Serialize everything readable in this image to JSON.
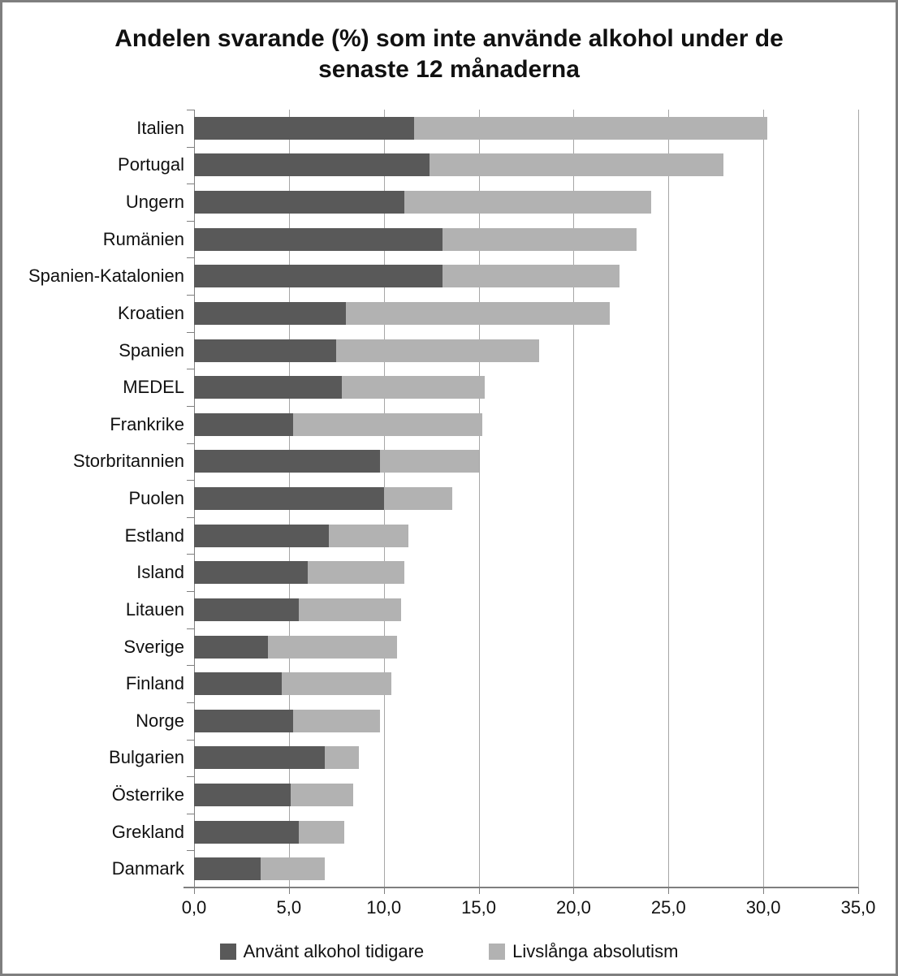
{
  "chart_data": {
    "type": "bar",
    "orientation": "horizontal",
    "stacked": true,
    "title": "Andelen svarande (%) som inte använde alkohol under de senaste 12 månaderna",
    "categories": [
      "Italien",
      "Portugal",
      "Ungern",
      "Rumänien",
      "Spanien-Katalonien",
      "Kroatien",
      "Spanien",
      "MEDEL",
      "Frankrike",
      "Storbritannien",
      "Puolen",
      "Estland",
      "Island",
      "Litauen",
      "Sverige",
      "Finland",
      "Norge",
      "Bulgarien",
      "Österrike",
      "Grekland",
      "Danmark"
    ],
    "series": [
      {
        "name": "Använt alkohol tidigare",
        "color": "#595959",
        "values": [
          11.6,
          12.4,
          11.1,
          13.1,
          13.1,
          8.0,
          7.5,
          7.8,
          5.2,
          9.8,
          10.0,
          7.1,
          6.0,
          5.5,
          3.9,
          4.6,
          5.2,
          6.9,
          5.1,
          5.5,
          3.5
        ]
      },
      {
        "name": "Livslånga absolutism",
        "color": "#b2b2b2",
        "values": [
          18.6,
          15.5,
          13.0,
          10.2,
          9.3,
          13.9,
          10.7,
          7.5,
          10.0,
          5.2,
          3.6,
          4.2,
          5.1,
          5.4,
          6.8,
          5.8,
          4.6,
          1.8,
          3.3,
          2.4,
          3.4
        ]
      }
    ],
    "x_axis": {
      "min": 0,
      "max": 35,
      "tick_step": 5,
      "tick_labels": [
        "0,0",
        "5,0",
        "10,0",
        "15,0",
        "20,0",
        "25,0",
        "30,0",
        "35,0"
      ]
    },
    "grid": true,
    "legend_position": "bottom",
    "colors": {
      "gridline": "#a6a6a6",
      "axis": "#7f7f7f",
      "frame": "#7f7f7f",
      "text": "#111111"
    }
  }
}
